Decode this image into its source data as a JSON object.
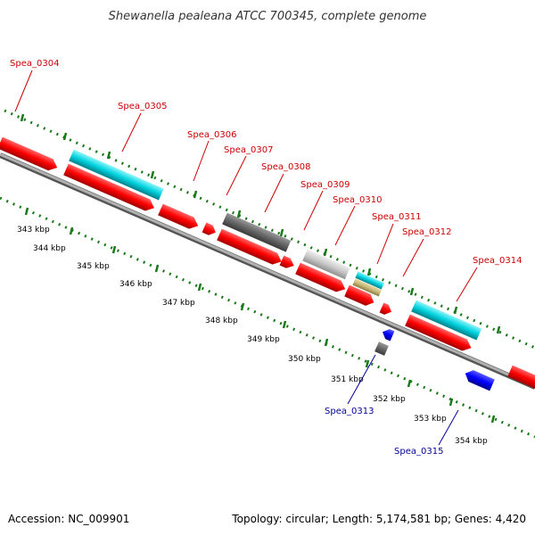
{
  "title": "Shewanella pealeana ATCC 700345, complete genome",
  "footer": {
    "accession": "Accession: NC_009901",
    "summary": "Topology: circular; Length: 5,174,581 bp; Genes: 4,420"
  },
  "colors": {
    "forward_gene": "#ff0000",
    "reverse_gene": "#0000ff",
    "label_forward": "#cc0000",
    "label_reverse": "#000099",
    "ruler_tick": "#1a7a1a",
    "backbone": "#8c8c8c",
    "cyan": "#00d4e0",
    "dark_gray": "#666666",
    "light_gray": "#c8c8c8",
    "tan": "#c8b878"
  },
  "ticks": [
    {
      "label": "343 kbp",
      "kbp": 343
    },
    {
      "label": "344 kbp",
      "kbp": 344
    },
    {
      "label": "345 kbp",
      "kbp": 345
    },
    {
      "label": "346 kbp",
      "kbp": 346
    },
    {
      "label": "347 kbp",
      "kbp": 347
    },
    {
      "label": "348 kbp",
      "kbp": 348
    },
    {
      "label": "349 kbp",
      "kbp": 349
    },
    {
      "label": "350 kbp",
      "kbp": 350
    },
    {
      "label": "351 kbp",
      "kbp": 351
    },
    {
      "label": "352 kbp",
      "kbp": 352
    },
    {
      "label": "353 kbp",
      "kbp": 353
    },
    {
      "label": "354 kbp",
      "kbp": 354
    }
  ],
  "gene_labels": [
    {
      "label": "Spea_0304",
      "strand": "forward"
    },
    {
      "label": "Spea_0305",
      "strand": "forward"
    },
    {
      "label": "Spea_0306",
      "strand": "forward"
    },
    {
      "label": "Spea_0307",
      "strand": "forward"
    },
    {
      "label": "Spea_0308",
      "strand": "forward"
    },
    {
      "label": "Spea_0309",
      "strand": "forward"
    },
    {
      "label": "Spea_0310",
      "strand": "forward"
    },
    {
      "label": "Spea_0311",
      "strand": "forward"
    },
    {
      "label": "Spea_0312",
      "strand": "forward"
    },
    {
      "label": "Spea_0314",
      "strand": "forward"
    },
    {
      "label": "Spea_0313",
      "strand": "reverse"
    },
    {
      "label": "Spea_0315",
      "strand": "reverse"
    }
  ]
}
